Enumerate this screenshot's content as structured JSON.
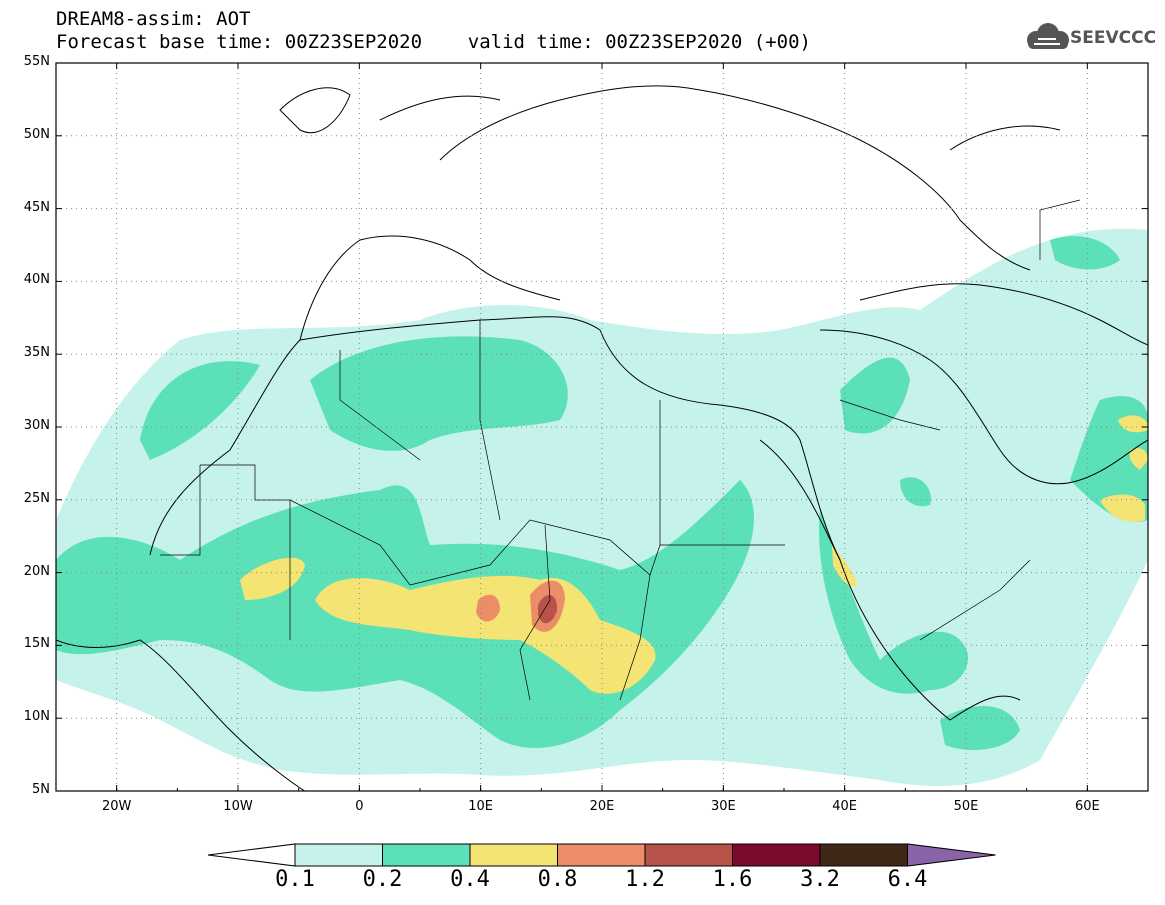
{
  "title": {
    "line1": "DREAM8-assim: AOT",
    "line2": "Forecast base time: 00Z23SEP2020    valid time: 00Z23SEP2020 (+00)"
  },
  "logo": {
    "text": "SEEVCCC",
    "icon": "cloud-logo-icon"
  },
  "map": {
    "lon_range": [
      -25,
      65
    ],
    "lat_range": [
      5,
      55
    ],
    "lat_labels": [
      "55N",
      "50N",
      "45N",
      "40N",
      "35N",
      "30N",
      "25N",
      "20N",
      "15N",
      "10N",
      "5N"
    ],
    "lat_values": [
      55,
      50,
      45,
      40,
      35,
      30,
      25,
      20,
      15,
      10,
      5
    ],
    "lon_labels": [
      "20W",
      "10W",
      "0",
      "10E",
      "20E",
      "30E",
      "40E",
      "50E",
      "60E"
    ],
    "lon_values": [
      -20,
      -10,
      0,
      10,
      20,
      30,
      40,
      50,
      60
    ],
    "grid": "dotted"
  },
  "colorbar": {
    "labels": [
      "0.1",
      "0.2",
      "0.4",
      "0.8",
      "1.2",
      "1.6",
      "3.2",
      "6.4"
    ],
    "colors": [
      "#c5f2ea",
      "#5ce0b8",
      "#f3e474",
      "#eb8e68",
      "#b8534a",
      "#7c0a2c",
      "#402818"
    ],
    "over_color": "#8a64a8",
    "under_color": "#ffffff"
  }
}
